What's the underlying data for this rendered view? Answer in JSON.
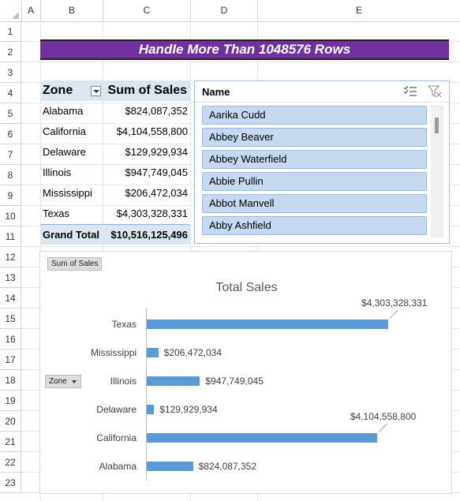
{
  "sheet": {
    "corner_label": "",
    "columns": [
      "A",
      "B",
      "C",
      "D",
      "E"
    ],
    "rows": [
      "1",
      "2",
      "3",
      "4",
      "5",
      "6",
      "7",
      "8",
      "9",
      "10",
      "11",
      "12",
      "13",
      "14",
      "15",
      "16",
      "17",
      "18",
      "19",
      "20",
      "21",
      "22",
      "23"
    ]
  },
  "banner": {
    "title": "Handle More Than 1048576 Rows",
    "color": "#7030a0"
  },
  "pivot": {
    "zone_header": "Zone",
    "sales_header": "Sum of Sales",
    "rows": [
      {
        "zone": "Alabama",
        "sales": "$824,087,352"
      },
      {
        "zone": "California",
        "sales": "$4,104,558,800"
      },
      {
        "zone": "Delaware",
        "sales": "$129,929,934"
      },
      {
        "zone": "Illinois",
        "sales": "$947,749,045"
      },
      {
        "zone": "Mississippi",
        "sales": "$206,472,034"
      },
      {
        "zone": "Texas",
        "sales": "$4,303,328,331"
      }
    ],
    "total_label": "Grand Total",
    "total_value": "$10,516,125,496",
    "header_color": "#dce6f1"
  },
  "slicer": {
    "title": "Name",
    "multiselect_icon": "multi-select-icon",
    "clear_icon": "clear-filter-icon",
    "items": [
      "Aarika Cudd",
      "Abbey Beaver",
      "Abbey Waterfield",
      "Abbie Pullin",
      "Abbot Manvell",
      "Abby Ashfield"
    ]
  },
  "chart": {
    "field_button": "Sum of Sales",
    "zone_button": "Zone"
  },
  "chart_data": {
    "type": "bar",
    "orientation": "horizontal",
    "title": "Total Sales",
    "categories": [
      "Texas",
      "Mississippi",
      "Illinois",
      "Delaware",
      "California",
      "Alabama"
    ],
    "values": [
      4303328331,
      206472034,
      947749045,
      129929934,
      4104558800,
      824087352
    ],
    "data_labels": [
      "$4,303,328,331",
      "$206,472,034",
      "$947,749,045",
      "$129,929,934",
      "$4,104,558,800",
      "$824,087,352"
    ],
    "xlim": [
      0,
      4500000000
    ],
    "grid": false,
    "bar_color": "#5b9bd5"
  }
}
